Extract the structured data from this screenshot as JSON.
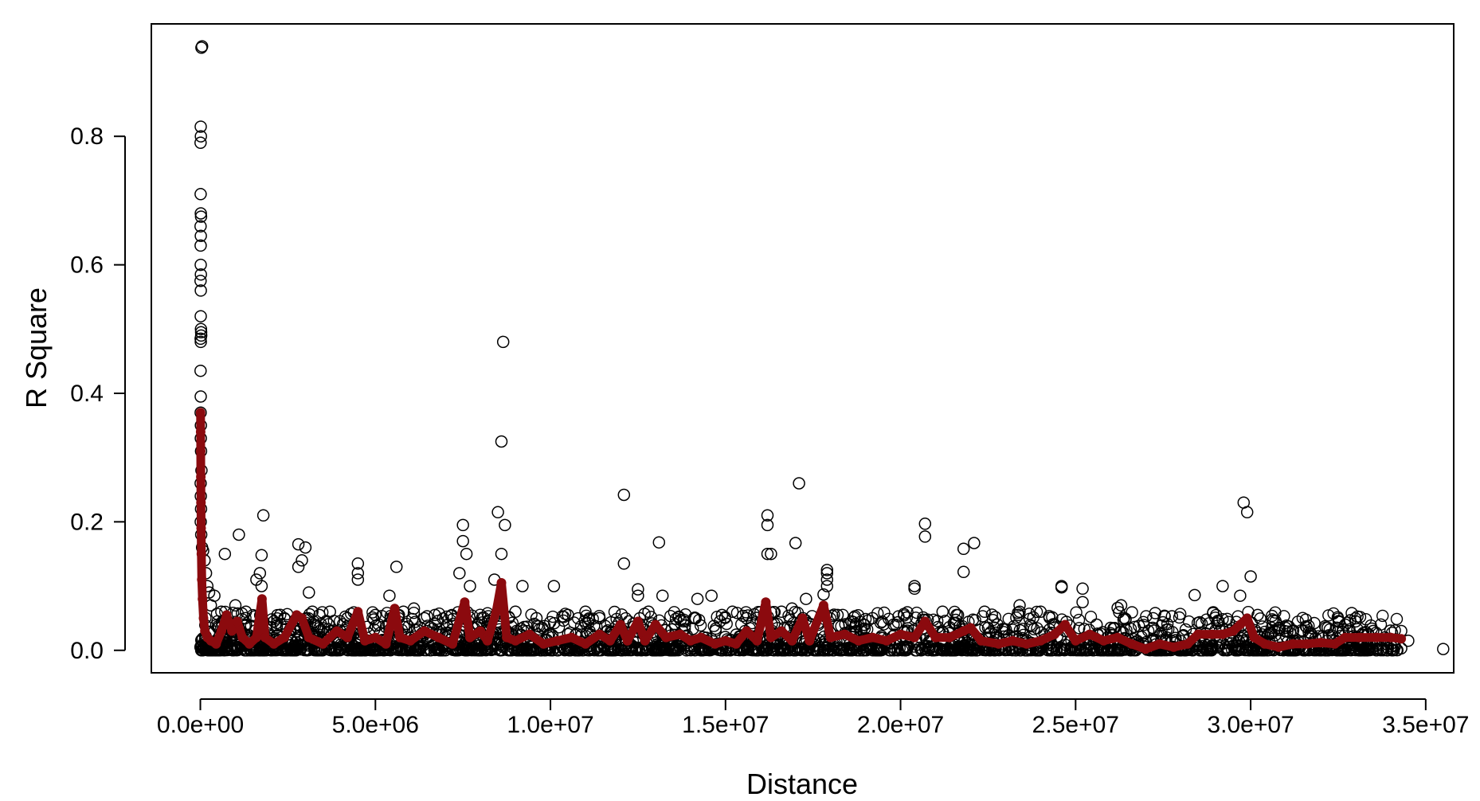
{
  "chart_data": {
    "type": "scatter",
    "title": "",
    "xlabel": "Distance",
    "ylabel": "R Square",
    "xlim": [
      -1400000,
      35800000
    ],
    "ylim": [
      -0.035,
      0.975
    ],
    "x_ticks": [
      {
        "value": 0,
        "label": "0.0e+00"
      },
      {
        "value": 5000000,
        "label": "5.0e+06"
      },
      {
        "value": 10000000,
        "label": "1.0e+07"
      },
      {
        "value": 15000000,
        "label": "1.5e+07"
      },
      {
        "value": 20000000,
        "label": "2.0e+07"
      },
      {
        "value": 25000000,
        "label": "2.5e+07"
      },
      {
        "value": 30000000,
        "label": "3.0e+07"
      },
      {
        "value": 35000000,
        "label": "3.5e+07"
      }
    ],
    "y_ticks": [
      {
        "value": 0.0,
        "label": "0.0"
      },
      {
        "value": 0.2,
        "label": "0.2"
      },
      {
        "value": 0.4,
        "label": "0.4"
      },
      {
        "value": 0.6,
        "label": "0.6"
      },
      {
        "value": 0.8,
        "label": "0.8"
      }
    ],
    "grid": false,
    "legend": "none",
    "colors": {
      "points": "#000000",
      "trend": "#8b0a0e"
    },
    "series": [
      {
        "type": "scatter",
        "marker": "open-circle",
        "points": [
          [
            30000,
            0.938
          ],
          [
            50000,
            0.94
          ],
          [
            10000,
            0.815
          ],
          [
            15000,
            0.8
          ],
          [
            5000,
            0.79
          ],
          [
            8000,
            0.71
          ],
          [
            12000,
            0.68
          ],
          [
            20000,
            0.675
          ],
          [
            6000,
            0.66
          ],
          [
            14000,
            0.645
          ],
          [
            9000,
            0.63
          ],
          [
            11000,
            0.6
          ],
          [
            16000,
            0.585
          ],
          [
            7000,
            0.575
          ],
          [
            13000,
            0.56
          ],
          [
            10000,
            0.52
          ],
          [
            18000,
            0.5
          ],
          [
            22000,
            0.495
          ],
          [
            8000,
            0.485
          ],
          [
            25000,
            0.49
          ],
          [
            12000,
            0.48
          ],
          [
            6000,
            0.435
          ],
          [
            10000,
            0.395
          ],
          [
            9000,
            0.37
          ],
          [
            15000,
            0.35
          ],
          [
            12000,
            0.33
          ],
          [
            20000,
            0.31
          ],
          [
            30000,
            0.28
          ],
          [
            8000,
            0.26
          ],
          [
            14000,
            0.24
          ],
          [
            20000,
            0.22
          ],
          [
            10000,
            0.2
          ],
          [
            25000,
            0.18
          ],
          [
            50000,
            0.16
          ],
          [
            80000,
            0.155
          ],
          [
            120000,
            0.14
          ],
          [
            160000,
            0.12
          ],
          [
            200000,
            0.1
          ],
          [
            250000,
            0.09
          ],
          [
            400000,
            0.085
          ],
          [
            700000,
            0.15
          ],
          [
            1100000,
            0.18
          ],
          [
            1800000,
            0.21
          ],
          [
            1750000,
            0.148
          ],
          [
            1700000,
            0.12
          ],
          [
            1750000,
            0.1
          ],
          [
            1600000,
            0.11
          ],
          [
            2800000,
            0.165
          ],
          [
            3000000,
            0.16
          ],
          [
            2900000,
            0.14
          ],
          [
            3100000,
            0.09
          ],
          [
            2800000,
            0.13
          ],
          [
            4500000,
            0.135
          ],
          [
            4500000,
            0.12
          ],
          [
            4500000,
            0.11
          ],
          [
            5600000,
            0.13
          ],
          [
            5400000,
            0.085
          ],
          [
            7500000,
            0.195
          ],
          [
            7500000,
            0.17
          ],
          [
            7600000,
            0.15
          ],
          [
            7400000,
            0.12
          ],
          [
            7700000,
            0.1
          ],
          [
            8500000,
            0.215
          ],
          [
            8700000,
            0.195
          ],
          [
            8600000,
            0.15
          ],
          [
            8650000,
            0.48
          ],
          [
            8600000,
            0.325
          ],
          [
            8400000,
            0.11
          ],
          [
            9200000,
            0.1
          ],
          [
            10100000,
            0.1
          ],
          [
            12100000,
            0.242
          ],
          [
            12100000,
            0.135
          ],
          [
            13100000,
            0.168
          ],
          [
            12500000,
            0.095
          ],
          [
            12500000,
            0.085
          ],
          [
            13200000,
            0.085
          ],
          [
            14200000,
            0.08
          ],
          [
            14600000,
            0.085
          ],
          [
            16200000,
            0.21
          ],
          [
            16200000,
            0.195
          ],
          [
            16200000,
            0.15
          ],
          [
            16300000,
            0.15
          ],
          [
            17100000,
            0.26
          ],
          [
            17000000,
            0.167
          ],
          [
            17300000,
            0.08
          ],
          [
            17900000,
            0.125
          ],
          [
            17900000,
            0.12
          ],
          [
            17900000,
            0.11
          ],
          [
            17900000,
            0.1
          ],
          [
            17800000,
            0.087
          ],
          [
            20400000,
            0.1
          ],
          [
            20400000,
            0.096
          ],
          [
            20700000,
            0.197
          ],
          [
            20700000,
            0.177
          ],
          [
            21800000,
            0.158
          ],
          [
            22100000,
            0.167
          ],
          [
            21800000,
            0.122
          ],
          [
            23400000,
            0.07
          ],
          [
            23400000,
            0.06
          ],
          [
            24600000,
            0.1
          ],
          [
            24600000,
            0.098
          ],
          [
            25200000,
            0.096
          ],
          [
            25200000,
            0.075
          ],
          [
            26200000,
            0.066
          ],
          [
            26300000,
            0.07
          ],
          [
            28400000,
            0.086
          ],
          [
            29200000,
            0.1
          ],
          [
            29700000,
            0.085
          ],
          [
            29800000,
            0.23
          ],
          [
            29900000,
            0.215
          ],
          [
            30000000,
            0.115
          ],
          [
            30200000,
            0.055
          ],
          [
            32700000,
            0.04
          ],
          [
            33000000,
            0.045
          ],
          [
            33500000,
            0.03
          ],
          [
            34300000,
            0.03
          ],
          [
            34500000,
            0.015
          ],
          [
            34300000,
            0.003
          ],
          [
            35500000,
            0.002
          ],
          [
            31000000,
            0.035
          ],
          [
            31500000,
            0.03
          ],
          [
            32200000,
            0.035
          ],
          [
            27200000,
            0.035
          ],
          [
            27600000,
            0.02
          ],
          [
            24000000,
            0.06
          ],
          [
            24400000,
            0.04
          ],
          [
            25600000,
            0.04
          ],
          [
            26000000,
            0.035
          ],
          [
            22400000,
            0.06
          ],
          [
            22500000,
            0.035
          ],
          [
            21200000,
            0.06
          ],
          [
            21600000,
            0.055
          ],
          [
            19200000,
            0.05
          ],
          [
            19800000,
            0.04
          ],
          [
            18600000,
            0.045
          ],
          [
            18200000,
            0.055
          ],
          [
            16600000,
            0.06
          ],
          [
            16900000,
            0.065
          ],
          [
            15600000,
            0.05
          ],
          [
            15200000,
            0.06
          ],
          [
            14900000,
            0.055
          ],
          [
            14100000,
            0.05
          ],
          [
            13800000,
            0.045
          ],
          [
            12800000,
            0.06
          ],
          [
            11400000,
            0.05
          ],
          [
            11000000,
            0.06
          ],
          [
            10500000,
            0.055
          ],
          [
            9600000,
            0.05
          ],
          [
            9000000,
            0.06
          ],
          [
            6700000,
            0.055
          ],
          [
            6400000,
            0.05
          ],
          [
            6100000,
            0.065
          ],
          [
            5800000,
            0.06
          ],
          [
            5000000,
            0.055
          ],
          [
            4200000,
            0.05
          ],
          [
            3700000,
            0.06
          ],
          [
            3400000,
            0.055
          ],
          [
            3200000,
            0.06
          ],
          [
            2400000,
            0.05
          ],
          [
            2100000,
            0.045
          ],
          [
            1300000,
            0.06
          ],
          [
            1000000,
            0.07
          ],
          [
            600000,
            0.06
          ],
          [
            300000,
            0.07
          ]
        ]
      },
      {
        "type": "line",
        "marker": "filled-circle",
        "points": [
          [
            5000,
            0.37
          ],
          [
            8000,
            0.34
          ],
          [
            10000,
            0.31
          ],
          [
            14000,
            0.27
          ],
          [
            18000,
            0.23
          ],
          [
            22000,
            0.19
          ],
          [
            28000,
            0.15
          ],
          [
            40000,
            0.11
          ],
          [
            60000,
            0.08
          ],
          [
            90000,
            0.05
          ],
          [
            130000,
            0.03
          ],
          [
            200000,
            0.02
          ],
          [
            300000,
            0.015
          ],
          [
            450000,
            0.01
          ],
          [
            600000,
            0.03
          ],
          [
            750000,
            0.055
          ],
          [
            900000,
            0.03
          ],
          [
            1050000,
            0.045
          ],
          [
            1200000,
            0.02
          ],
          [
            1400000,
            0.01
          ],
          [
            1600000,
            0.02
          ],
          [
            1760000,
            0.08
          ],
          [
            1850000,
            0.02
          ],
          [
            2100000,
            0.01
          ],
          [
            2400000,
            0.02
          ],
          [
            2750000,
            0.055
          ],
          [
            2900000,
            0.05
          ],
          [
            3100000,
            0.02
          ],
          [
            3500000,
            0.01
          ],
          [
            3900000,
            0.03
          ],
          [
            4200000,
            0.02
          ],
          [
            4500000,
            0.06
          ],
          [
            4700000,
            0.015
          ],
          [
            5000000,
            0.02
          ],
          [
            5300000,
            0.01
          ],
          [
            5550000,
            0.065
          ],
          [
            5700000,
            0.02
          ],
          [
            6000000,
            0.015
          ],
          [
            6400000,
            0.03
          ],
          [
            6800000,
            0.02
          ],
          [
            7200000,
            0.01
          ],
          [
            7550000,
            0.075
          ],
          [
            7700000,
            0.02
          ],
          [
            8000000,
            0.03
          ],
          [
            8200000,
            0.015
          ],
          [
            8450000,
            0.06
          ],
          [
            8600000,
            0.105
          ],
          [
            8750000,
            0.02
          ],
          [
            9000000,
            0.015
          ],
          [
            9400000,
            0.025
          ],
          [
            9800000,
            0.01
          ],
          [
            10200000,
            0.015
          ],
          [
            10600000,
            0.02
          ],
          [
            11000000,
            0.01
          ],
          [
            11400000,
            0.025
          ],
          [
            11700000,
            0.015
          ],
          [
            12000000,
            0.04
          ],
          [
            12200000,
            0.015
          ],
          [
            12500000,
            0.045
          ],
          [
            12700000,
            0.015
          ],
          [
            13000000,
            0.04
          ],
          [
            13300000,
            0.02
          ],
          [
            13700000,
            0.025
          ],
          [
            14000000,
            0.015
          ],
          [
            14300000,
            0.02
          ],
          [
            14700000,
            0.01
          ],
          [
            15000000,
            0.015
          ],
          [
            15300000,
            0.01
          ],
          [
            15600000,
            0.03
          ],
          [
            15900000,
            0.015
          ],
          [
            16150000,
            0.075
          ],
          [
            16300000,
            0.02
          ],
          [
            16600000,
            0.03
          ],
          [
            16900000,
            0.015
          ],
          [
            17200000,
            0.05
          ],
          [
            17400000,
            0.015
          ],
          [
            17800000,
            0.07
          ],
          [
            18000000,
            0.02
          ],
          [
            18400000,
            0.025
          ],
          [
            18800000,
            0.015
          ],
          [
            19200000,
            0.02
          ],
          [
            19600000,
            0.015
          ],
          [
            20000000,
            0.025
          ],
          [
            20400000,
            0.02
          ],
          [
            20700000,
            0.045
          ],
          [
            21000000,
            0.02
          ],
          [
            21400000,
            0.02
          ],
          [
            21800000,
            0.03
          ],
          [
            22000000,
            0.035
          ],
          [
            22300000,
            0.015
          ],
          [
            22800000,
            0.01
          ],
          [
            23200000,
            0.015
          ],
          [
            23600000,
            0.01
          ],
          [
            24000000,
            0.015
          ],
          [
            24400000,
            0.025
          ],
          [
            24700000,
            0.04
          ],
          [
            25000000,
            0.015
          ],
          [
            25400000,
            0.025
          ],
          [
            25800000,
            0.015
          ],
          [
            26200000,
            0.02
          ],
          [
            26600000,
            0.01
          ],
          [
            27000000,
            0.002
          ],
          [
            27400000,
            0.01
          ],
          [
            27800000,
            0.005
          ],
          [
            28200000,
            0.01
          ],
          [
            28500000,
            0.025
          ],
          [
            28900000,
            0.025
          ],
          [
            29200000,
            0.025
          ],
          [
            29500000,
            0.03
          ],
          [
            29700000,
            0.04
          ],
          [
            29900000,
            0.05
          ],
          [
            30100000,
            0.02
          ],
          [
            30400000,
            0.01
          ],
          [
            30800000,
            0.005
          ],
          [
            31200000,
            0.01
          ],
          [
            31600000,
            0.01
          ],
          [
            32000000,
            0.012
          ],
          [
            32400000,
            0.01
          ],
          [
            32700000,
            0.02
          ],
          [
            33100000,
            0.02
          ],
          [
            33600000,
            0.02
          ],
          [
            34000000,
            0.02
          ],
          [
            34300000,
            0.018
          ]
        ]
      }
    ]
  }
}
